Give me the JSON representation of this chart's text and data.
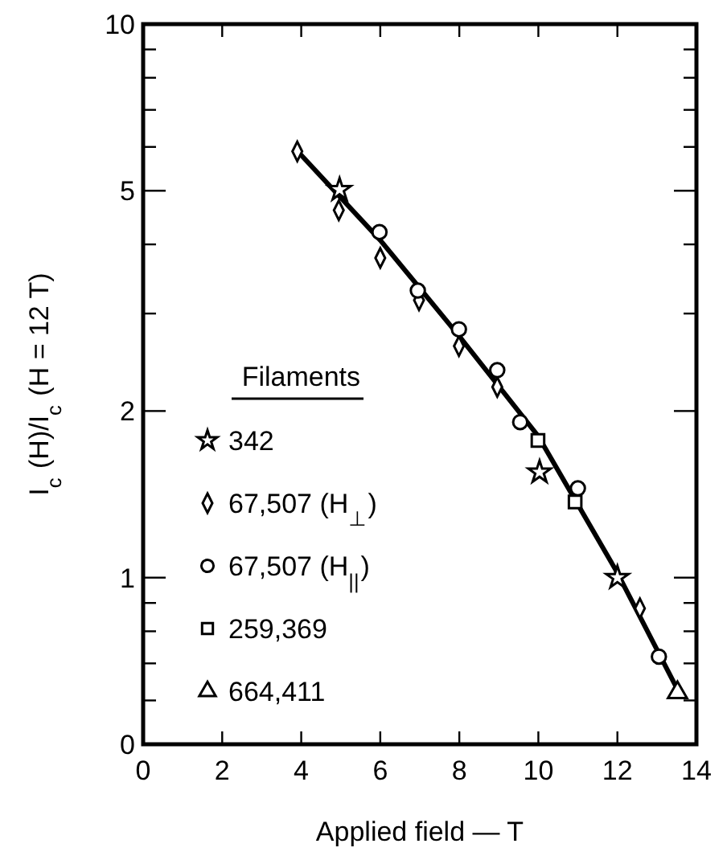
{
  "chart_data": {
    "type": "scatter",
    "xlabel": "Applied field — T",
    "ylabel": "I$_{c}$ (H)/I$_{c}$ (H = 12 T)",
    "legend_title": "Filaments",
    "legend": "bottom left",
    "log": "y",
    "grid": false,
    "xlim": [
      0,
      14
    ],
    "xticks": [
      0,
      2,
      4,
      6,
      8,
      10,
      12,
      14
    ],
    "ylim": [
      0.5,
      10
    ],
    "yticks": [
      {
        "value": 0.5,
        "label": "0"
      },
      {
        "value": 0.6,
        "label": null
      },
      {
        "value": 0.7,
        "label": null
      },
      {
        "value": 0.8,
        "label": null
      },
      {
        "value": 0.9,
        "label": null
      },
      1,
      2,
      {
        "value": 3,
        "label": null
      },
      {
        "value": 4,
        "label": null
      },
      5,
      {
        "value": 6,
        "label": null
      },
      {
        "value": 7,
        "label": null
      },
      {
        "value": 8,
        "label": null
      },
      {
        "value": 9,
        "label": null
      },
      10
    ],
    "series": [
      {
        "name": "342",
        "color": "#000000",
        "marker": "star",
        "x": [
          4.97,
          10.03,
          12.0
        ],
        "values": [
          5.02,
          1.55,
          1.0
        ]
      },
      {
        "name": "67,507 (H$_{⊥}$)",
        "color": "#000000",
        "marker": "diamond",
        "x": [
          3.9,
          4.95,
          6.0,
          6.98,
          7.99,
          8.96,
          12.57
        ],
        "values": [
          5.89,
          4.61,
          3.78,
          3.17,
          2.62,
          2.21,
          0.88
        ]
      },
      {
        "name": "67,507 (H$_{||}$)",
        "color": "#000000",
        "marker": "circle",
        "x": [
          5.98,
          6.95,
          7.99,
          8.96,
          9.54,
          11.0,
          13.05
        ],
        "values": [
          4.21,
          3.3,
          2.81,
          2.37,
          1.91,
          1.45,
          0.72
        ]
      },
      {
        "name": "259,369",
        "color": "#000000",
        "marker": "square",
        "x": [
          9.99,
          10.93
        ],
        "values": [
          1.77,
          1.37
        ]
      },
      {
        "name": "664,411",
        "color": "#000000",
        "marker": "triangle",
        "x": [
          13.52
        ],
        "values": [
          0.62
        ]
      },
      {
        "type": "line",
        "color": "#000000",
        "marker": "none",
        "line_style": "solid",
        "x": [
          3.9,
          6,
          8,
          10,
          12,
          13.56
        ],
        "values": [
          5.9,
          4.07,
          2.73,
          1.8,
          1.02,
          0.62
        ]
      }
    ]
  }
}
